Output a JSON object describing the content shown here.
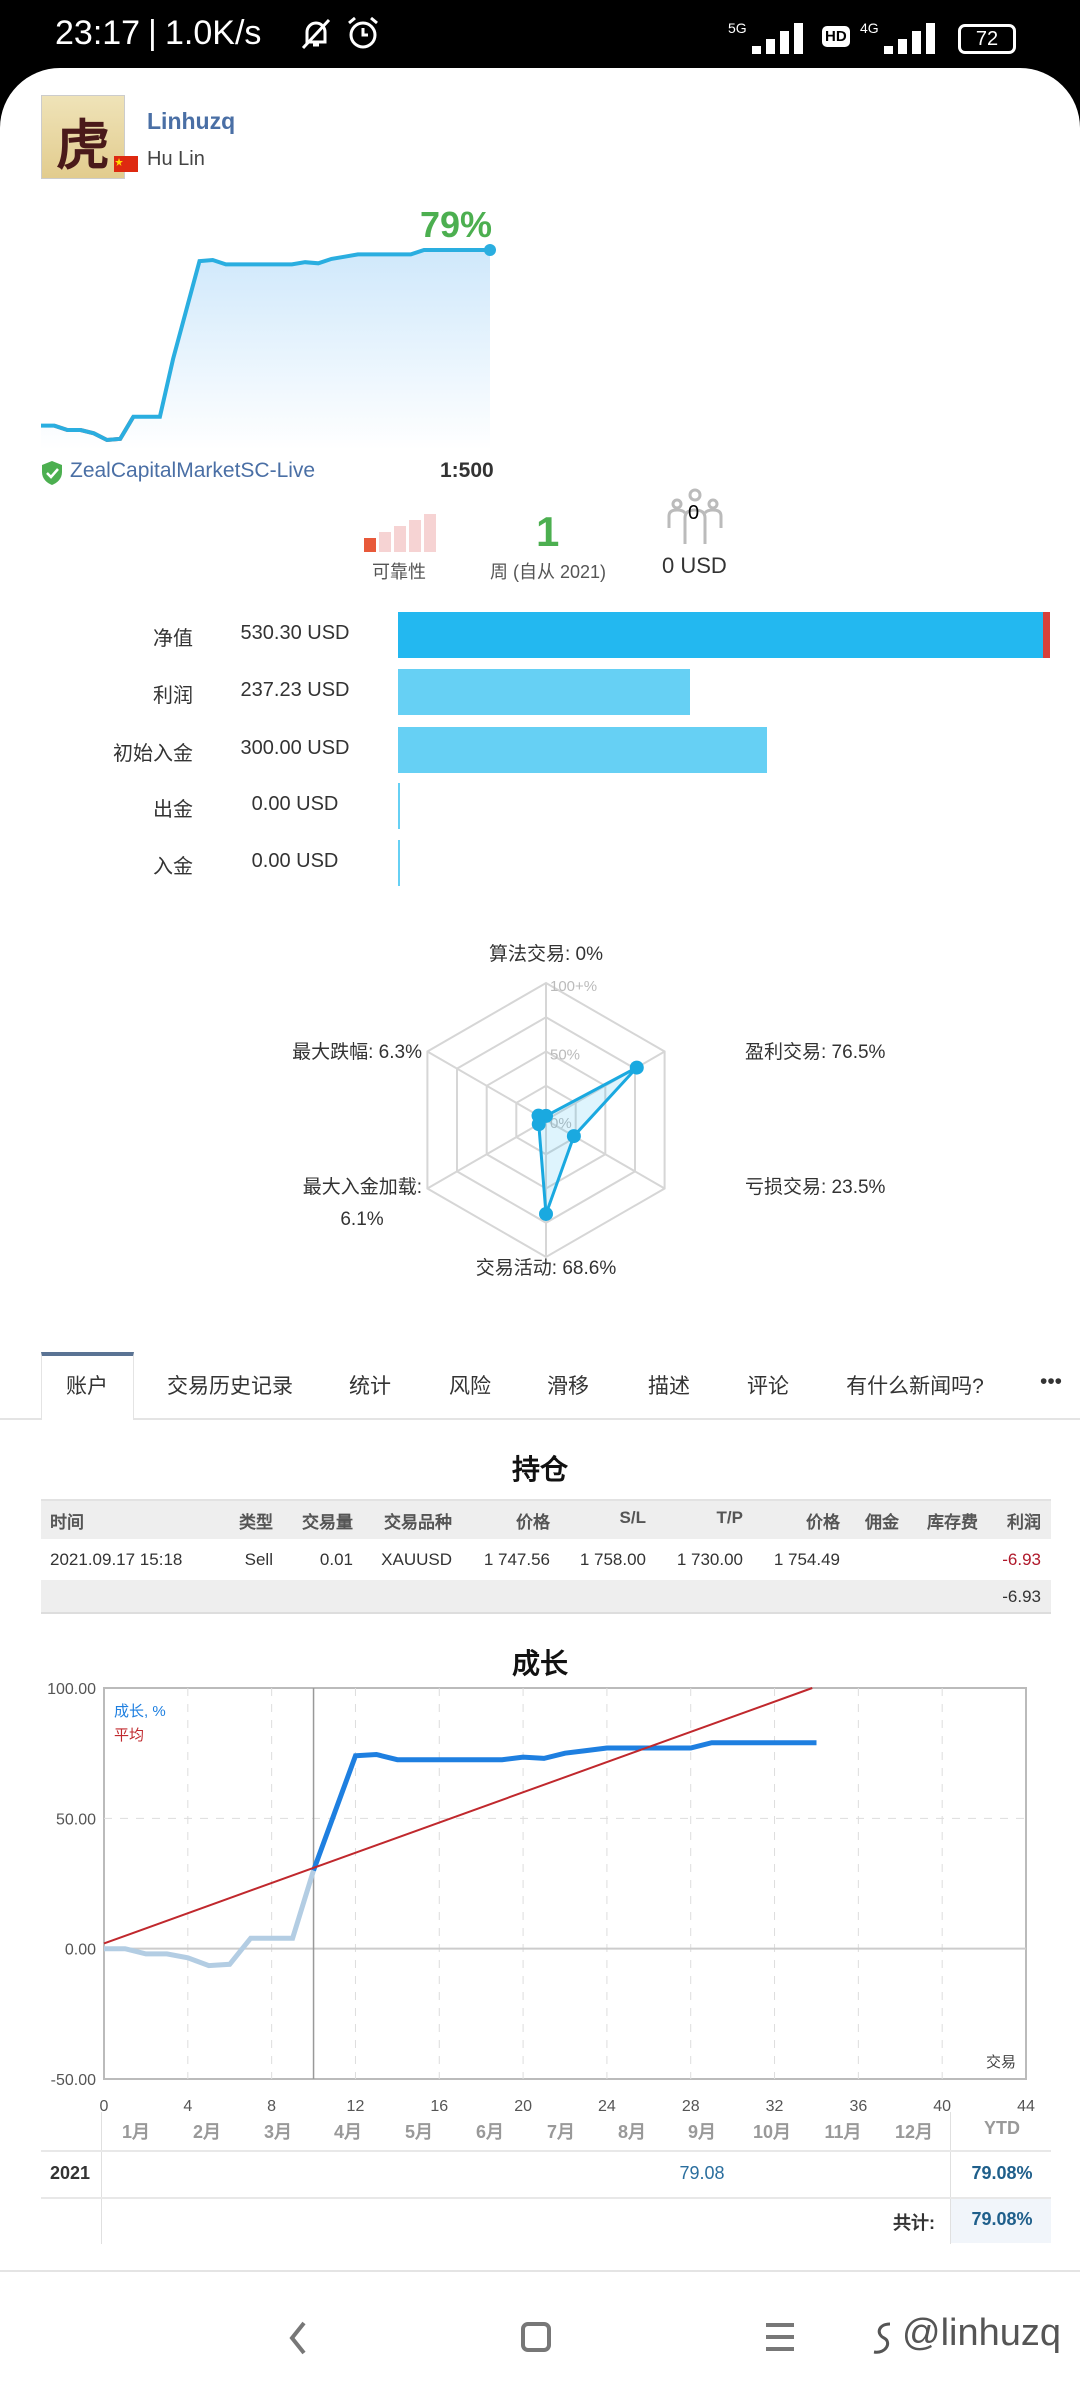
{
  "status_bar": {
    "time": "23:17",
    "speed": "1.0K/s",
    "network1": "5G",
    "hd": "HD",
    "network2": "4G",
    "battery": "72"
  },
  "profile": {
    "username": "Linhuzq",
    "name": "Hu Lin",
    "avatar_char": "虎",
    "growth": "79%",
    "broker": "ZealCapitalMarketSC-Live",
    "leverage": "1:500"
  },
  "stats": {
    "reliability_label": "可靠性",
    "reliability_level": 1,
    "weeks": "1",
    "weeks_label": "周 (自从 2021)",
    "subscribers": "0",
    "subscribers_funds": "0 USD"
  },
  "balances": [
    {
      "label": "净值",
      "value": "530.30 USD",
      "amount": 530.3
    },
    {
      "label": "利润",
      "value": "237.23 USD",
      "amount": 237.23
    },
    {
      "label": "初始入金",
      "value": "300.00 USD",
      "amount": 300.0
    },
    {
      "label": "出金",
      "value": "0.00 USD",
      "amount": 0
    },
    {
      "label": "入金",
      "value": "0.00 USD",
      "amount": 0
    }
  ],
  "radar": {
    "ring_labels": [
      "100+%",
      "50%",
      "0%"
    ],
    "axes": [
      {
        "label": "算法交易: 0%",
        "value": 0
      },
      {
        "label": "盈利交易: 76.5%",
        "value": 76.5
      },
      {
        "label": "亏损交易: 23.5%",
        "value": 23.5
      },
      {
        "label": "交易活动: 68.6%",
        "value": 68.6
      },
      {
        "label": "最大入金加载:",
        "label2": "6.1%",
        "value": 6.1
      },
      {
        "label": "最大跌幅: 6.3%",
        "value": 6.3
      }
    ]
  },
  "tabs": [
    "账户",
    "交易历史记录",
    "统计",
    "风险",
    "滑移",
    "描述",
    "评论",
    "有什么新闻吗?",
    "•••"
  ],
  "positions": {
    "title": "持仓",
    "headers": [
      "时间",
      "类型",
      "交易量",
      "交易品种",
      "价格",
      "S/L",
      "T/P",
      "价格",
      "佣金",
      "库存费",
      "利润"
    ],
    "rows": [
      [
        "2021.09.17 15:18",
        "Sell",
        "0.01",
        "XAUUSD",
        "1 747.56",
        "1 758.00",
        "1 730.00",
        "1 754.49",
        "",
        "",
        "-6.93"
      ]
    ],
    "total": "-6.93"
  },
  "chart_data": {
    "type": "line",
    "title": "成长",
    "xlabel": "交易",
    "xlim": [
      0,
      44
    ],
    "ylim": [
      -50,
      100
    ],
    "xticks": [
      "0",
      "4",
      "8",
      "12",
      "16",
      "20",
      "24",
      "28",
      "32",
      "36",
      "40",
      "44"
    ],
    "yticks": [
      "100.00",
      "50.00",
      "0.00",
      "-50.00"
    ],
    "grid": true,
    "legend": "top-left",
    "series": [
      {
        "name": "成长, %",
        "color": "#1e7fe0",
        "x": [
          0,
          1,
          2,
          3,
          4,
          5,
          6,
          7,
          8,
          9,
          10,
          11,
          12,
          13,
          14,
          15,
          16,
          17,
          18,
          19,
          20,
          21,
          22,
          23,
          24,
          25,
          26,
          27,
          28,
          29,
          30,
          31,
          32,
          33,
          34
        ],
        "y": [
          0,
          0,
          -2,
          -2,
          -3.5,
          -6.5,
          -6,
          4,
          4,
          4,
          30,
          52,
          74,
          74.5,
          72.5,
          72.5,
          72.5,
          72.5,
          72.5,
          72.5,
          73.5,
          73,
          75,
          76,
          77,
          77,
          77,
          77,
          77,
          79,
          79,
          79,
          79,
          79,
          79
        ]
      },
      {
        "name": "平均",
        "color": "#c0282d",
        "x": [
          0,
          33.8
        ],
        "y": [
          2,
          100
        ]
      }
    ]
  },
  "monthly": {
    "months": [
      "1月",
      "2月",
      "3月",
      "4月",
      "5月",
      "6月",
      "7月",
      "8月",
      "9月",
      "10月",
      "11月",
      "12月"
    ],
    "ytd_label": "YTD",
    "year": "2021",
    "sep_value": "79.08",
    "ytd": "79.08%",
    "total_label": "共计:",
    "total": "79.08%"
  },
  "watermark": "@linhuzq"
}
